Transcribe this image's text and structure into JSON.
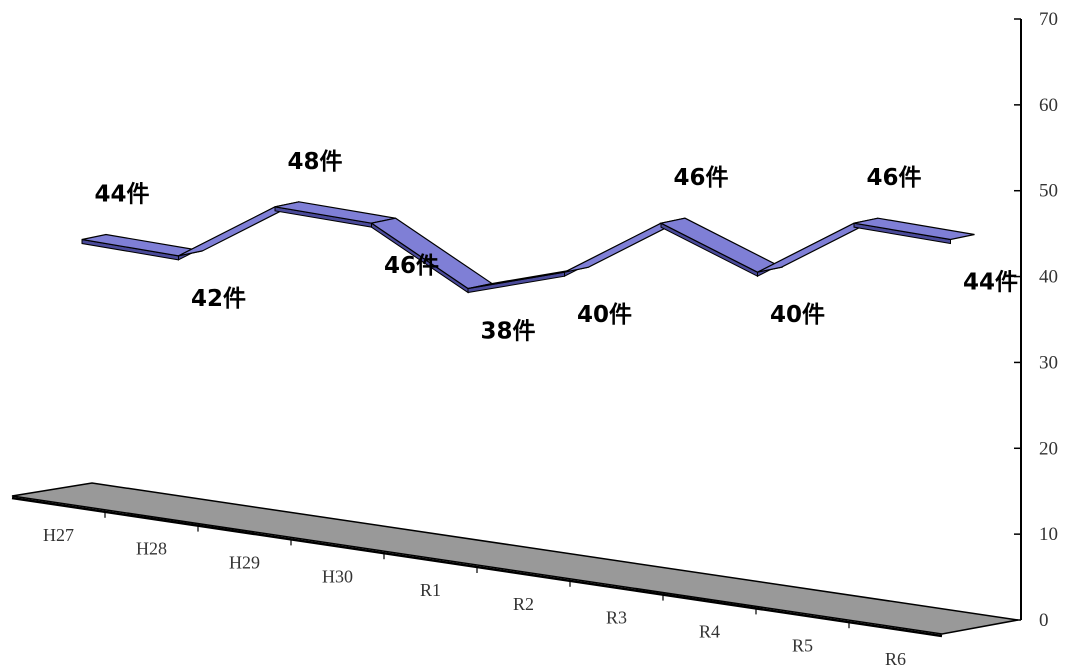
{
  "chart_data": {
    "type": "line",
    "style": "3d-ribbon",
    "categories": [
      "H27",
      "H28",
      "H29",
      "H30",
      "R1",
      "R2",
      "R3",
      "R4",
      "R5",
      "R6"
    ],
    "values": [
      44,
      42,
      48,
      46,
      38,
      40,
      46,
      40,
      46,
      44
    ],
    "value_labels": [
      "44件",
      "42件",
      "48件",
      "46件",
      "38件",
      "40件",
      "46件",
      "40件",
      "46件",
      "44件"
    ],
    "y_axis": {
      "ticks": [
        "0",
        "10",
        "20",
        "30",
        "40",
        "50",
        "60",
        "70"
      ],
      "ylim": [
        0,
        70
      ],
      "position": "right"
    },
    "grid": false,
    "legend": "none",
    "colors": {
      "ribbon_top": "#7f7fd6",
      "ribbon_side": "#4a4a9a",
      "floor": "#999999",
      "axis": "#000000"
    }
  }
}
